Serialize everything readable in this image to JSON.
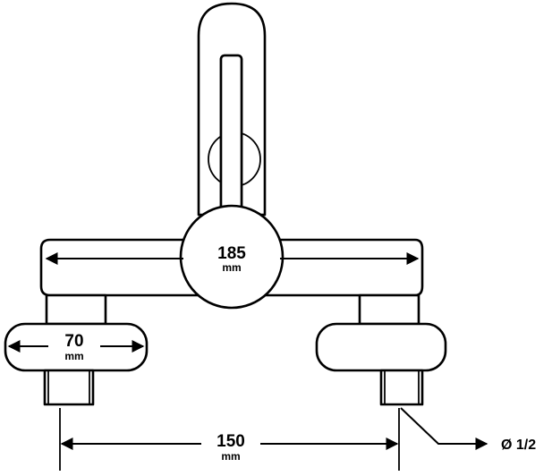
{
  "dimensions": {
    "body_width": {
      "value": "185",
      "unit": "mm"
    },
    "eccentric_width": {
      "value": "70",
      "unit": "mm"
    },
    "center_distance": {
      "value": "150",
      "unit": "mm"
    },
    "thread_size": {
      "label": "Ø 1/2"
    }
  },
  "colors": {
    "line": "#000000",
    "background": "#ffffff"
  }
}
